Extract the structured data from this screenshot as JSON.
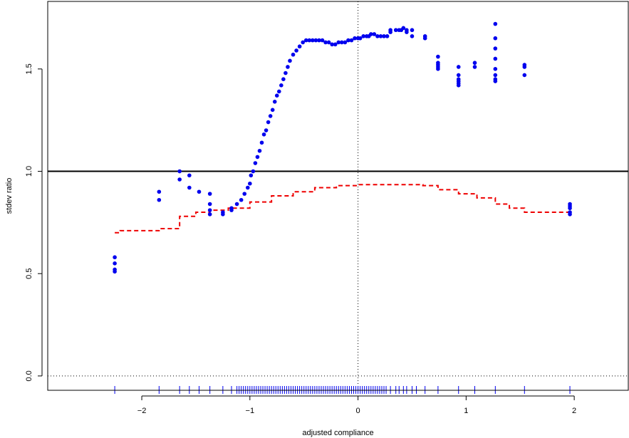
{
  "chart_data": {
    "type": "scatter",
    "xlabel": "adjusted compliance",
    "ylabel": "stdev ratio",
    "xlim": [
      -2.87,
      2.5
    ],
    "ylim": [
      -0.07,
      1.83
    ],
    "x_ticks": [
      -2,
      -1,
      0,
      1,
      2
    ],
    "x_tick_labels": [
      "−2",
      "−1",
      "0",
      "1",
      "2"
    ],
    "y_ticks": [
      0.0,
      0.5,
      1.0,
      1.5
    ],
    "y_tick_labels": [
      "0.0",
      "0.5",
      "1.0",
      "1.5"
    ],
    "grid": false,
    "reference_lines": [
      {
        "orientation": "horizontal",
        "value": 1.0,
        "style": "solid",
        "color": "#000000"
      },
      {
        "orientation": "horizontal",
        "value": 0.0,
        "style": "dotted",
        "color": "#000000"
      },
      {
        "orientation": "vertical",
        "value": 0.0,
        "style": "dotted",
        "color": "#000000"
      }
    ],
    "colors": {
      "points": "#0000ee",
      "band": "#ee0000",
      "rug": "#0000ee"
    },
    "series": [
      {
        "type": "scatter",
        "x": [
          -2.25,
          -2.25,
          -2.25,
          -2.25,
          -1.84,
          -1.84,
          -1.65,
          -1.65,
          -1.56,
          -1.56,
          -1.47,
          -1.37,
          -1.37,
          -1.37,
          -1.37,
          -1.25,
          -1.25,
          -1.17,
          -1.17,
          -1.12,
          -1.08,
          -1.05,
          -1.02,
          -1.0,
          -0.99,
          -0.97,
          -0.95,
          -0.93,
          -0.91,
          -0.89,
          -0.87,
          -0.85,
          -0.83,
          -0.81,
          -0.79,
          -0.77,
          -0.75,
          -0.73,
          -0.71,
          -0.69,
          -0.67,
          -0.65,
          -0.63,
          -0.6,
          -0.57,
          -0.54,
          -0.51,
          -0.48,
          -0.45,
          -0.42,
          -0.39,
          -0.36,
          -0.33,
          -0.3,
          -0.27,
          -0.24,
          -0.21,
          -0.18,
          -0.15,
          -0.12,
          -0.09,
          -0.06,
          -0.03,
          0.0,
          0.02,
          0.05,
          0.08,
          0.1,
          0.12,
          0.15,
          0.18,
          0.21,
          0.24,
          0.27,
          0.3,
          0.3,
          0.35,
          0.38,
          0.4,
          0.42,
          0.45,
          0.45,
          0.5,
          0.5,
          0.62,
          0.62,
          0.74,
          0.74,
          0.74,
          0.74,
          0.74,
          0.93,
          0.93,
          0.93,
          0.93,
          0.93,
          0.93,
          1.08,
          1.08,
          1.27,
          1.27,
          1.27,
          1.27,
          1.27,
          1.27,
          1.27,
          1.27,
          1.54,
          1.54,
          1.54,
          1.96,
          1.96,
          1.96,
          1.96,
          1.96
        ],
        "y": [
          0.58,
          0.55,
          0.52,
          0.51,
          0.9,
          0.86,
          1.0,
          0.96,
          0.98,
          0.92,
          0.9,
          0.89,
          0.84,
          0.81,
          0.79,
          0.8,
          0.79,
          0.82,
          0.81,
          0.84,
          0.86,
          0.89,
          0.92,
          0.94,
          0.98,
          1.0,
          1.04,
          1.07,
          1.1,
          1.14,
          1.18,
          1.2,
          1.24,
          1.27,
          1.3,
          1.34,
          1.37,
          1.39,
          1.42,
          1.45,
          1.48,
          1.51,
          1.54,
          1.57,
          1.59,
          1.61,
          1.63,
          1.64,
          1.64,
          1.64,
          1.64,
          1.64,
          1.64,
          1.63,
          1.63,
          1.62,
          1.62,
          1.63,
          1.63,
          1.63,
          1.64,
          1.64,
          1.65,
          1.65,
          1.65,
          1.66,
          1.66,
          1.66,
          1.67,
          1.67,
          1.66,
          1.66,
          1.66,
          1.66,
          1.69,
          1.68,
          1.69,
          1.69,
          1.69,
          1.7,
          1.69,
          1.68,
          1.69,
          1.66,
          1.66,
          1.65,
          1.56,
          1.53,
          1.52,
          1.51,
          1.5,
          1.51,
          1.47,
          1.45,
          1.44,
          1.43,
          1.42,
          1.53,
          1.51,
          1.72,
          1.65,
          1.6,
          1.55,
          1.5,
          1.47,
          1.45,
          1.44,
          1.52,
          1.51,
          1.47,
          0.84,
          0.83,
          0.82,
          0.8,
          0.79
        ]
      },
      {
        "type": "step",
        "style": "dashed",
        "x": [
          -2.25,
          -2.2,
          -2.0,
          -1.84,
          -1.65,
          -1.5,
          -1.37,
          -1.2,
          -1.0,
          -0.8,
          -0.6,
          -0.4,
          -0.2,
          0.0,
          0.2,
          0.4,
          0.6,
          0.74,
          0.93,
          1.1,
          1.27,
          1.4,
          1.54,
          1.96,
          1.98
        ],
        "y": [
          0.7,
          0.71,
          0.71,
          0.72,
          0.78,
          0.8,
          0.81,
          0.82,
          0.85,
          0.88,
          0.9,
          0.92,
          0.93,
          0.935,
          0.935,
          0.935,
          0.93,
          0.91,
          0.89,
          0.87,
          0.84,
          0.82,
          0.8,
          0.8,
          0.8
        ]
      }
    ],
    "rug": [
      -2.25,
      -1.84,
      -1.65,
      -1.56,
      -1.47,
      -1.37,
      -1.25,
      -1.17,
      -1.12,
      -1.1,
      -1.08,
      -1.06,
      -1.04,
      -1.02,
      -1.0,
      -0.98,
      -0.96,
      -0.94,
      -0.92,
      -0.9,
      -0.88,
      -0.86,
      -0.84,
      -0.82,
      -0.8,
      -0.78,
      -0.76,
      -0.74,
      -0.72,
      -0.7,
      -0.68,
      -0.66,
      -0.64,
      -0.62,
      -0.6,
      -0.58,
      -0.56,
      -0.54,
      -0.52,
      -0.5,
      -0.48,
      -0.46,
      -0.44,
      -0.42,
      -0.4,
      -0.38,
      -0.36,
      -0.34,
      -0.32,
      -0.3,
      -0.28,
      -0.26,
      -0.24,
      -0.22,
      -0.2,
      -0.18,
      -0.16,
      -0.14,
      -0.12,
      -0.1,
      -0.08,
      -0.06,
      -0.04,
      -0.02,
      0.0,
      0.02,
      0.04,
      0.06,
      0.08,
      0.1,
      0.12,
      0.14,
      0.16,
      0.18,
      0.2,
      0.22,
      0.24,
      0.26,
      0.3,
      0.35,
      0.38,
      0.42,
      0.45,
      0.5,
      0.54,
      0.62,
      0.74,
      0.93,
      1.08,
      1.27,
      1.54,
      1.96
    ]
  }
}
